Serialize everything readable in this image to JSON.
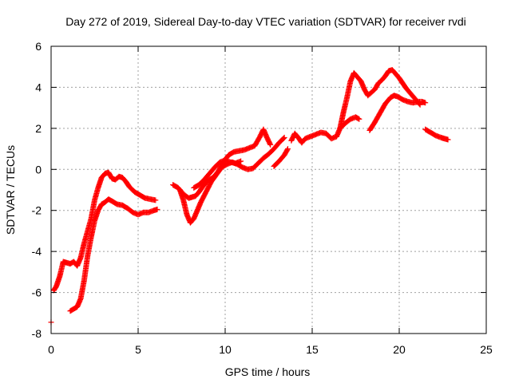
{
  "chart_data": {
    "type": "scatter",
    "title": "Day 272 of 2019, Sidereal Day-to-day VTEC variation (SDTVAR) for receiver rvdi",
    "xlabel": "GPS time / hours",
    "ylabel": "SDTVAR / TECUs",
    "xlim": [
      0,
      25
    ],
    "ylim": [
      -8,
      6
    ],
    "x_ticks": [
      "0",
      "5",
      "10",
      "15",
      "20",
      "25"
    ],
    "y_ticks": [
      "-8",
      "-6",
      "-4",
      "-2",
      "0",
      "2",
      "4",
      "6"
    ],
    "grid": true,
    "legend": "none",
    "marker": "plus",
    "series": [
      {
        "color": "#ff0000",
        "segments": [
          [
            [
              0.0,
              -7.45
            ]
          ],
          [
            [
              0.15,
              -5.9
            ],
            [
              0.3,
              -5.7
            ],
            [
              0.5,
              -5.2
            ],
            [
              0.7,
              -4.5
            ],
            [
              0.9,
              -4.55
            ],
            [
              1.1,
              -4.6
            ],
            [
              1.3,
              -4.5
            ],
            [
              1.5,
              -4.7
            ],
            [
              1.7,
              -4.3
            ],
            [
              1.9,
              -3.6
            ],
            [
              2.1,
              -3.0
            ],
            [
              2.3,
              -2.4
            ],
            [
              2.5,
              -1.5
            ],
            [
              2.7,
              -0.9
            ],
            [
              2.9,
              -0.4
            ],
            [
              3.1,
              -0.2
            ],
            [
              3.3,
              -0.15
            ],
            [
              3.5,
              -0.45
            ],
            [
              3.7,
              -0.5
            ],
            [
              3.9,
              -0.35
            ],
            [
              4.1,
              -0.4
            ],
            [
              4.3,
              -0.6
            ],
            [
              4.5,
              -0.85
            ],
            [
              4.8,
              -1.1
            ],
            [
              5.1,
              -1.25
            ],
            [
              5.4,
              -1.4
            ],
            [
              5.7,
              -1.45
            ],
            [
              6.0,
              -1.5
            ]
          ],
          [
            [
              1.1,
              -6.9
            ],
            [
              1.3,
              -6.8
            ],
            [
              1.5,
              -6.7
            ],
            [
              1.7,
              -6.3
            ],
            [
              1.9,
              -5.4
            ],
            [
              2.1,
              -4.2
            ],
            [
              2.3,
              -3.3
            ],
            [
              2.5,
              -2.5
            ],
            [
              2.7,
              -2.0
            ],
            [
              2.9,
              -1.7
            ],
            [
              3.1,
              -1.6
            ],
            [
              3.3,
              -1.45
            ],
            [
              3.5,
              -1.55
            ],
            [
              3.8,
              -1.7
            ],
            [
              4.1,
              -1.75
            ],
            [
              4.4,
              -1.9
            ],
            [
              4.7,
              -2.1
            ],
            [
              5.0,
              -2.2
            ],
            [
              5.3,
              -2.1
            ],
            [
              5.6,
              -2.1
            ],
            [
              5.9,
              -2.0
            ],
            [
              6.1,
              -1.95
            ]
          ],
          [
            [
              7.0,
              -0.75
            ],
            [
              7.3,
              -0.9
            ],
            [
              7.6,
              -1.2
            ],
            [
              7.9,
              -1.4
            ],
            [
              8.1,
              -1.35
            ],
            [
              8.3,
              -1.3
            ],
            [
              8.5,
              -1.1
            ],
            [
              8.7,
              -0.85
            ],
            [
              9.0,
              -0.55
            ],
            [
              9.3,
              -0.4
            ],
            [
              9.6,
              -0.1
            ],
            [
              9.9,
              0.35
            ],
            [
              10.2,
              0.7
            ],
            [
              10.5,
              0.85
            ],
            [
              10.8,
              0.9
            ],
            [
              11.1,
              0.95
            ],
            [
              11.4,
              1.05
            ],
            [
              11.7,
              1.15
            ],
            [
              12.0,
              1.6
            ],
            [
              12.2,
              1.95
            ],
            [
              12.4,
              1.55
            ],
            [
              12.6,
              1.2
            ]
          ],
          [
            [
              7.4,
              -1.0
            ],
            [
              7.6,
              -1.5
            ],
            [
              7.8,
              -2.2
            ],
            [
              8.0,
              -2.6
            ],
            [
              8.2,
              -2.4
            ],
            [
              8.4,
              -2.0
            ],
            [
              8.6,
              -1.6
            ],
            [
              8.9,
              -1.1
            ],
            [
              9.2,
              -0.6
            ],
            [
              9.5,
              -0.25
            ],
            [
              9.8,
              0.1
            ],
            [
              10.1,
              0.25
            ],
            [
              10.4,
              0.35
            ],
            [
              10.7,
              0.25
            ],
            [
              11.0,
              0.1
            ],
            [
              11.3,
              0.0
            ],
            [
              11.6,
              0.05
            ],
            [
              11.9,
              0.3
            ],
            [
              12.2,
              0.55
            ],
            [
              12.5,
              0.75
            ],
            [
              12.8,
              1.0
            ],
            [
              13.1,
              1.3
            ],
            [
              13.4,
              1.55
            ]
          ],
          [
            [
              8.2,
              -0.9
            ],
            [
              8.5,
              -0.75
            ],
            [
              8.8,
              -0.5
            ],
            [
              9.1,
              -0.2
            ],
            [
              9.4,
              0.1
            ],
            [
              9.7,
              0.35
            ],
            [
              10.0,
              0.45
            ],
            [
              10.3,
              0.35
            ],
            [
              10.6,
              0.3
            ],
            [
              10.9,
              0.4
            ]
          ],
          [
            [
              12.8,
              0.15
            ],
            [
              13.1,
              0.4
            ],
            [
              13.4,
              0.7
            ],
            [
              13.6,
              1.0
            ]
          ],
          [
            [
              13.8,
              1.4
            ],
            [
              14.0,
              1.75
            ],
            [
              14.2,
              1.55
            ],
            [
              14.4,
              1.3
            ],
            [
              14.6,
              1.5
            ],
            [
              14.9,
              1.6
            ],
            [
              15.2,
              1.7
            ],
            [
              15.5,
              1.8
            ],
            [
              15.8,
              1.75
            ],
            [
              16.1,
              1.5
            ],
            [
              16.4,
              1.6
            ],
            [
              16.6,
              2.0
            ],
            [
              16.8,
              2.8
            ],
            [
              17.0,
              3.5
            ],
            [
              17.2,
              4.3
            ],
            [
              17.4,
              4.7
            ],
            [
              17.6,
              4.5
            ],
            [
              17.8,
              4.3
            ],
            [
              18.0,
              3.9
            ],
            [
              18.2,
              3.6
            ],
            [
              18.4,
              3.75
            ],
            [
              18.6,
              3.9
            ],
            [
              18.8,
              4.2
            ],
            [
              19.0,
              4.35
            ],
            [
              19.2,
              4.55
            ],
            [
              19.4,
              4.8
            ],
            [
              19.6,
              4.85
            ],
            [
              19.8,
              4.65
            ],
            [
              20.0,
              4.45
            ],
            [
              20.2,
              4.2
            ],
            [
              20.4,
              3.95
            ],
            [
              20.6,
              3.75
            ],
            [
              20.8,
              3.55
            ],
            [
              21.0,
              3.35
            ],
            [
              21.2,
              3.15
            ]
          ],
          [
            [
              16.6,
              2.0
            ],
            [
              16.9,
              2.25
            ],
            [
              17.2,
              2.45
            ],
            [
              17.5,
              2.55
            ],
            [
              17.7,
              2.45
            ]
          ],
          [
            [
              18.3,
              1.9
            ],
            [
              18.6,
              2.3
            ],
            [
              18.9,
              2.75
            ],
            [
              19.2,
              3.2
            ],
            [
              19.5,
              3.5
            ],
            [
              19.7,
              3.6
            ],
            [
              19.9,
              3.55
            ],
            [
              20.2,
              3.4
            ],
            [
              20.5,
              3.3
            ],
            [
              20.8,
              3.25
            ],
            [
              21.1,
              3.3
            ],
            [
              21.3,
              3.3
            ],
            [
              21.5,
              3.25
            ]
          ],
          [
            [
              21.5,
              1.95
            ],
            [
              21.8,
              1.8
            ],
            [
              22.1,
              1.65
            ],
            [
              22.4,
              1.55
            ],
            [
              22.6,
              1.5
            ],
            [
              22.8,
              1.45
            ]
          ]
        ]
      }
    ]
  }
}
